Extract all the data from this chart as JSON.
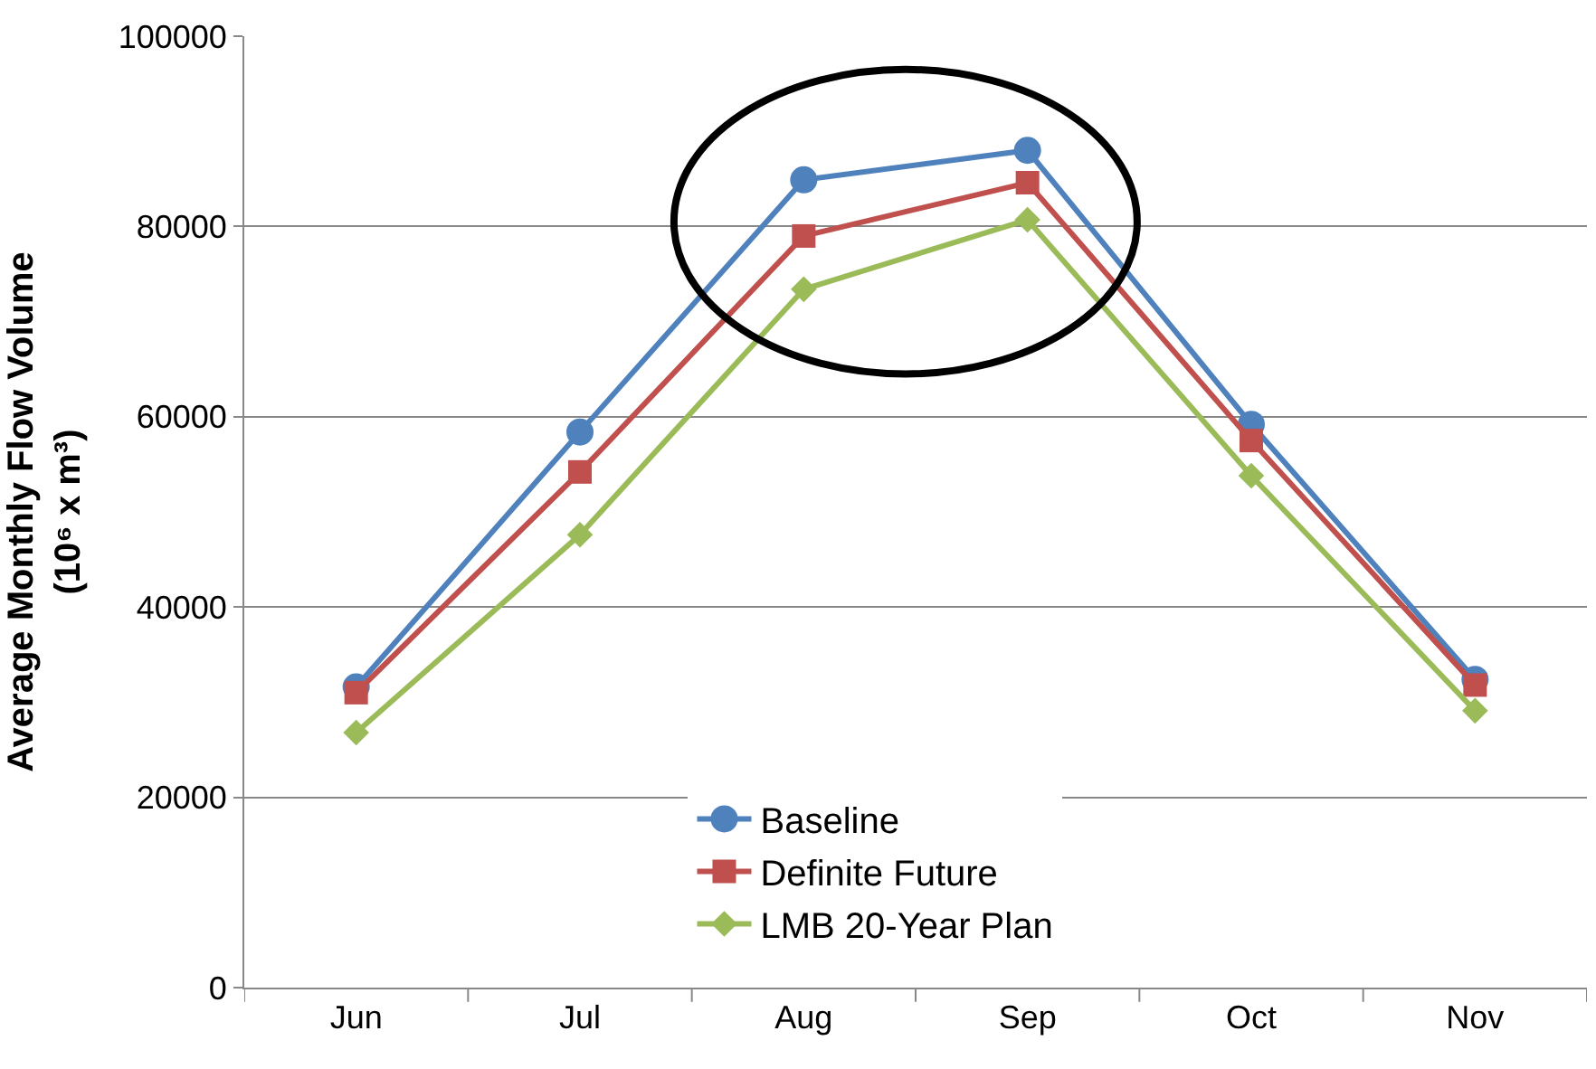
{
  "chart_data": {
    "type": "line",
    "ylabel": "Average Monthly Flow Volume\n(10⁶ x m³)",
    "categories": [
      "Jun",
      "Jul",
      "Aug",
      "Sep",
      "Oct",
      "Nov"
    ],
    "series": [
      {
        "name": "Baseline",
        "color": "#4f81bd",
        "marker": "circle",
        "values": [
          31600,
          58400,
          84900,
          88000,
          59200,
          32400
        ]
      },
      {
        "name": "Definite Future",
        "color": "#c0504d",
        "marker": "square",
        "values": [
          31000,
          54200,
          79000,
          84600,
          57500,
          31800
        ]
      },
      {
        "name": "LMB 20-Year Plan",
        "color": "#9bbb59",
        "marker": "diamond",
        "values": [
          26800,
          47600,
          73400,
          80700,
          53800,
          29100
        ]
      }
    ],
    "ylim": [
      0,
      100000
    ],
    "yticks": [
      0,
      20000,
      40000,
      60000,
      80000,
      100000
    ],
    "grid": "y",
    "legend": "bottom",
    "line_style": "solid"
  }
}
